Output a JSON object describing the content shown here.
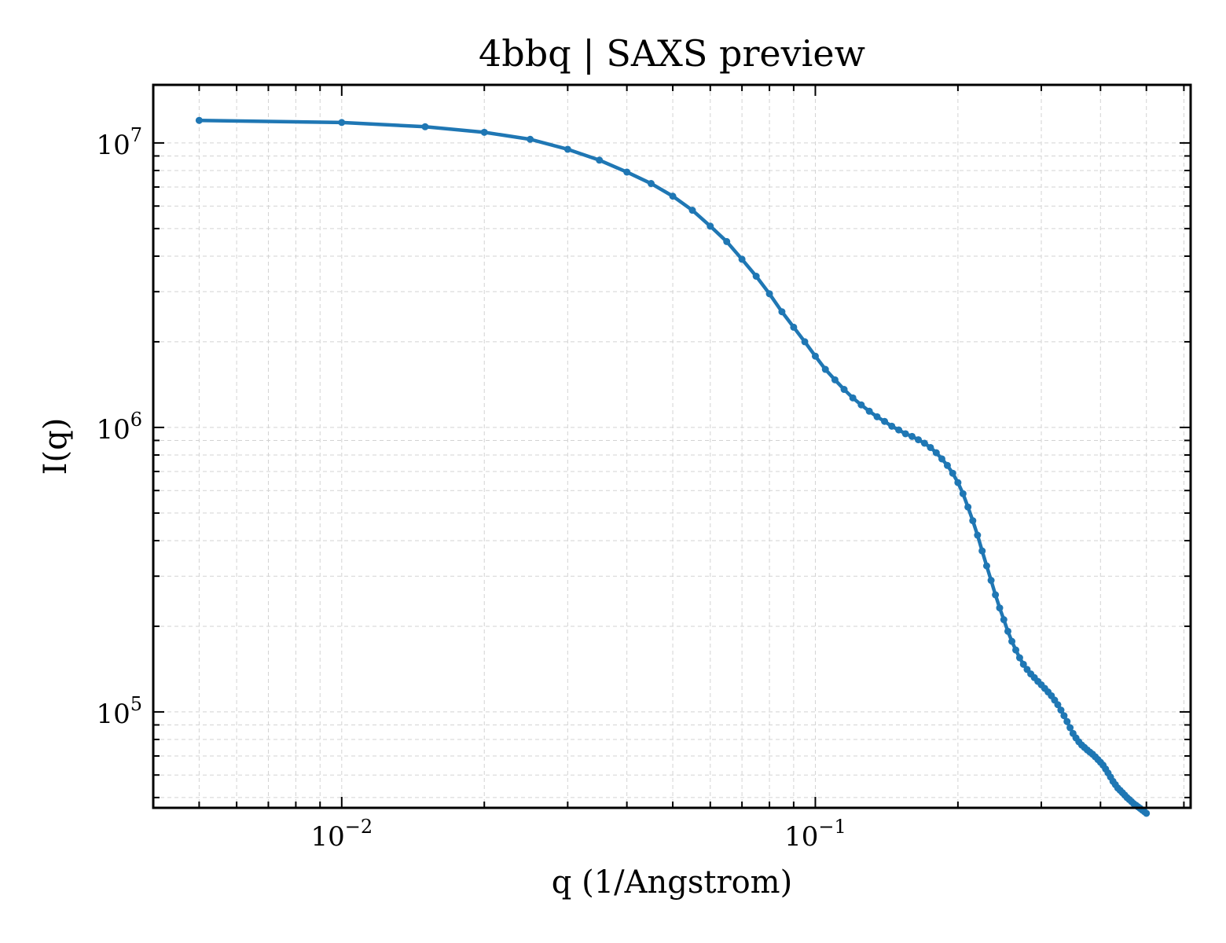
{
  "chart_data": {
    "type": "line",
    "title": "4bbq | SAXS preview",
    "xlabel": "q (1/Angstrom)",
    "ylabel": "I(q)",
    "xscale": "log",
    "yscale": "log",
    "xlim": [
      0.004,
      0.62
    ],
    "ylim": [
      46000,
      16000000
    ],
    "grid": true,
    "x_ticks": [
      {
        "value": 0.01,
        "base": "10",
        "exp": "−2"
      },
      {
        "value": 0.1,
        "base": "10",
        "exp": "−1"
      }
    ],
    "y_ticks": [
      {
        "value": 100000,
        "base": "10",
        "exp": "5"
      },
      {
        "value": 1000000,
        "base": "10",
        "exp": "6"
      },
      {
        "value": 10000000,
        "base": "10",
        "exp": "7"
      }
    ],
    "color": "#1f77b4",
    "series": [
      {
        "x": [
          0.005,
          0.01,
          0.015,
          0.02,
          0.025,
          0.03,
          0.035,
          0.04,
          0.045,
          0.05,
          0.055,
          0.06,
          0.065,
          0.07,
          0.075,
          0.08,
          0.085,
          0.09,
          0.095,
          0.1,
          0.105,
          0.11,
          0.115,
          0.12,
          0.125,
          0.13,
          0.135,
          0.14,
          0.145,
          0.15,
          0.155,
          0.16,
          0.165,
          0.17,
          0.175,
          0.18,
          0.185,
          0.19,
          0.195,
          0.2,
          0.205,
          0.21,
          0.215,
          0.22,
          0.225,
          0.23,
          0.235,
          0.24,
          0.245,
          0.25,
          0.255,
          0.26,
          0.265,
          0.27,
          0.275,
          0.28,
          0.285,
          0.29,
          0.295,
          0.3,
          0.305,
          0.31,
          0.315,
          0.32,
          0.325,
          0.33,
          0.335,
          0.34,
          0.345,
          0.35,
          0.355,
          0.36,
          0.365,
          0.37,
          0.375,
          0.38,
          0.385,
          0.39,
          0.395,
          0.4,
          0.405,
          0.41,
          0.415,
          0.42,
          0.425,
          0.43,
          0.435,
          0.44,
          0.445,
          0.45,
          0.455,
          0.46,
          0.465,
          0.47,
          0.475,
          0.48,
          0.485,
          0.49,
          0.495,
          0.5
        ],
        "y": [
          12000000,
          11800000,
          11400000,
          10900000,
          10300000,
          9500000,
          8700000,
          7900000,
          7200000,
          6500000,
          5800000,
          5100000,
          4500000,
          3900000,
          3400000,
          2950000,
          2550000,
          2250000,
          2000000,
          1780000,
          1600000,
          1470000,
          1360000,
          1270000,
          1200000,
          1140000,
          1090000,
          1050000,
          1010000,
          980000,
          950000,
          930000,
          905000,
          880000,
          850000,
          815000,
          775000,
          735000,
          690000,
          640000,
          585000,
          525000,
          470000,
          418000,
          368000,
          326000,
          290000,
          258000,
          232000,
          211000,
          192000,
          177000,
          165000,
          155000,
          147000,
          141000,
          136000,
          132000,
          128000,
          124500,
          121000,
          117500,
          114000,
          110000,
          106000,
          101500,
          97000,
          92500,
          88000,
          84000,
          81000,
          78500,
          76500,
          75000,
          73500,
          72200,
          71000,
          69500,
          68000,
          66500,
          65000,
          63000,
          61000,
          59000,
          57000,
          55500,
          54000,
          53000,
          52000,
          51000,
          50000,
          49200,
          48400,
          47600,
          47000,
          46400,
          45800,
          45200,
          44600,
          44000
        ]
      }
    ]
  }
}
